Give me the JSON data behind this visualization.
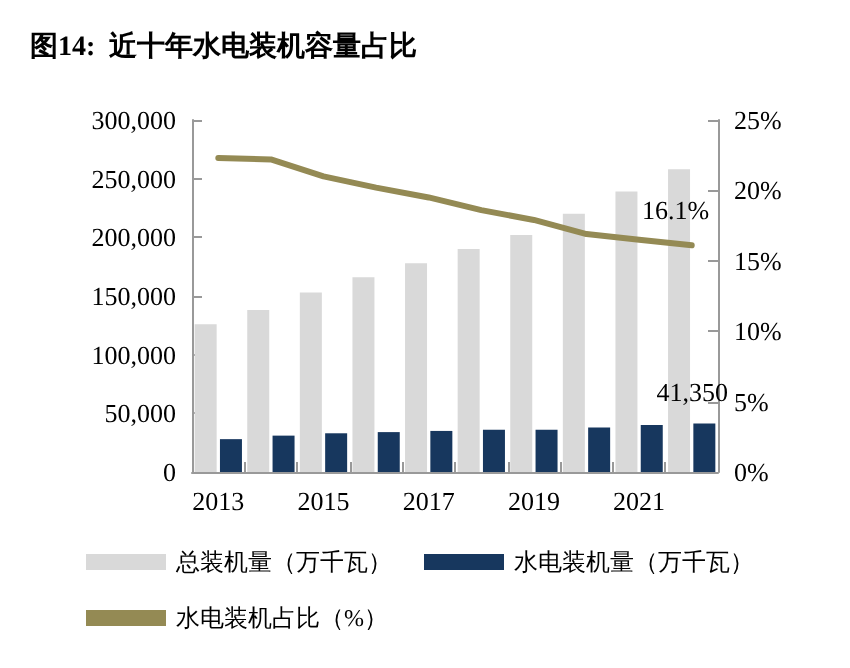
{
  "chart_data": {
    "type": "bar",
    "title": "图14:  近十年水电装机容量占比",
    "categories": [
      "2013",
      null,
      "2015",
      null,
      "2017",
      null,
      "2019",
      null,
      "2021",
      null
    ],
    "series": [
      {
        "name": "总装机量（万千瓦）",
        "color": "#d9d9d9",
        "values": [
          126000,
          138000,
          153000,
          166000,
          178000,
          190000,
          202000,
          220000,
          239000,
          258000
        ]
      },
      {
        "name": "水电装机量（万千瓦）",
        "color": "#17375e",
        "values": [
          28000,
          31000,
          33000,
          34000,
          35000,
          36000,
          36000,
          38000,
          40000,
          41350
        ],
        "value_labels": [
          null,
          null,
          null,
          null,
          null,
          null,
          null,
          null,
          null,
          "41,350"
        ]
      },
      {
        "name": "水电装机占比（%）",
        "type": "line",
        "axis": "y2",
        "color": "#948a54",
        "values": [
          22.3,
          22.2,
          21.0,
          20.2,
          19.5,
          18.6,
          17.9,
          16.9,
          16.5,
          16.1
        ],
        "value_labels": [
          null,
          null,
          null,
          null,
          null,
          null,
          null,
          null,
          null,
          "16.1%"
        ]
      }
    ],
    "ylim": [
      0,
      300000
    ],
    "yticks": [
      {
        "value": 0,
        "label": "0"
      },
      {
        "value": 50000,
        "label": "50,000"
      },
      {
        "value": 100000,
        "label": "100,000"
      },
      {
        "value": 150000,
        "label": "150,000"
      },
      {
        "value": 200000,
        "label": "200,000"
      },
      {
        "value": 250000,
        "label": "250,000"
      },
      {
        "value": 300000,
        "label": "300,000"
      }
    ],
    "y2lim": [
      0,
      25
    ],
    "y2ticks": [
      {
        "value": 0,
        "label": "0%"
      },
      {
        "value": 5,
        "label": "5%"
      },
      {
        "value": 10,
        "label": "10%"
      },
      {
        "value": 15,
        "label": "15%"
      },
      {
        "value": 20,
        "label": "20%"
      },
      {
        "value": 25,
        "label": "25%"
      }
    ],
    "legend": "bottom",
    "grid": false,
    "marker": "none",
    "line_style": "solid"
  }
}
